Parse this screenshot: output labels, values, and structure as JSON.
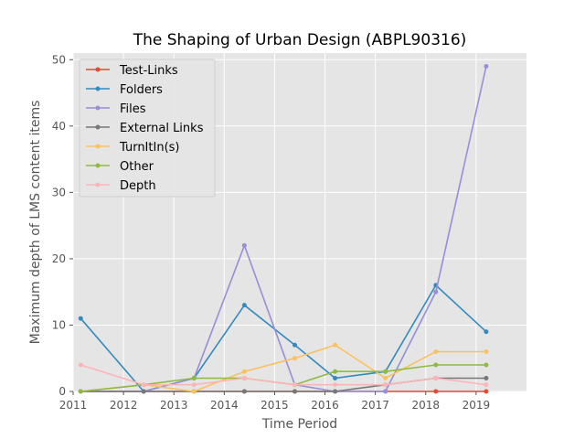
{
  "chart_data": {
    "type": "line",
    "title": "The Shaping of Urban Design (ABPL90316)",
    "xlabel": "Time Period",
    "ylabel": "Maximum depth of LMS content items",
    "xlim": [
      2011,
      2020
    ],
    "ylim": [
      0,
      51
    ],
    "xticks": [
      2011,
      2012,
      2013,
      2014,
      2015,
      2016,
      2017,
      2018,
      2019
    ],
    "yticks": [
      0,
      10,
      20,
      30,
      40,
      50
    ],
    "grid": true,
    "legend_position": "upper left",
    "x": [
      2011.15,
      2012.4,
      2013.4,
      2014.4,
      2015.4,
      2016.2,
      2017.2,
      2018.2,
      2019.2
    ],
    "series": [
      {
        "name": "Test-Links",
        "color": "#E24A33",
        "values": [
          0,
          0,
          0,
          0,
          0,
          0,
          0,
          0,
          0
        ]
      },
      {
        "name": "Folders",
        "color": "#348ABD",
        "values": [
          11,
          0,
          2,
          13,
          7,
          2,
          3,
          16,
          9
        ]
      },
      {
        "name": "Files",
        "color": "#988ED5",
        "values": [
          0,
          0,
          2,
          22,
          1,
          0,
          0,
          15,
          49
        ]
      },
      {
        "name": "External Links",
        "color": "#777777",
        "values": [
          0,
          0,
          0,
          0,
          0,
          0,
          1,
          2,
          2
        ]
      },
      {
        "name": "TurnItIn(s)",
        "color": "#FBC15E",
        "values": [
          0,
          1,
          0,
          3,
          5,
          7,
          2,
          6,
          6
        ]
      },
      {
        "name": "Other",
        "color": "#8EBA42",
        "values": [
          0,
          1,
          2,
          2,
          1,
          3,
          3,
          4,
          4
        ]
      },
      {
        "name": "Depth",
        "color": "#FFB5B8",
        "values": [
          4,
          1,
          1,
          2,
          1,
          1,
          1,
          2,
          1
        ]
      }
    ]
  }
}
